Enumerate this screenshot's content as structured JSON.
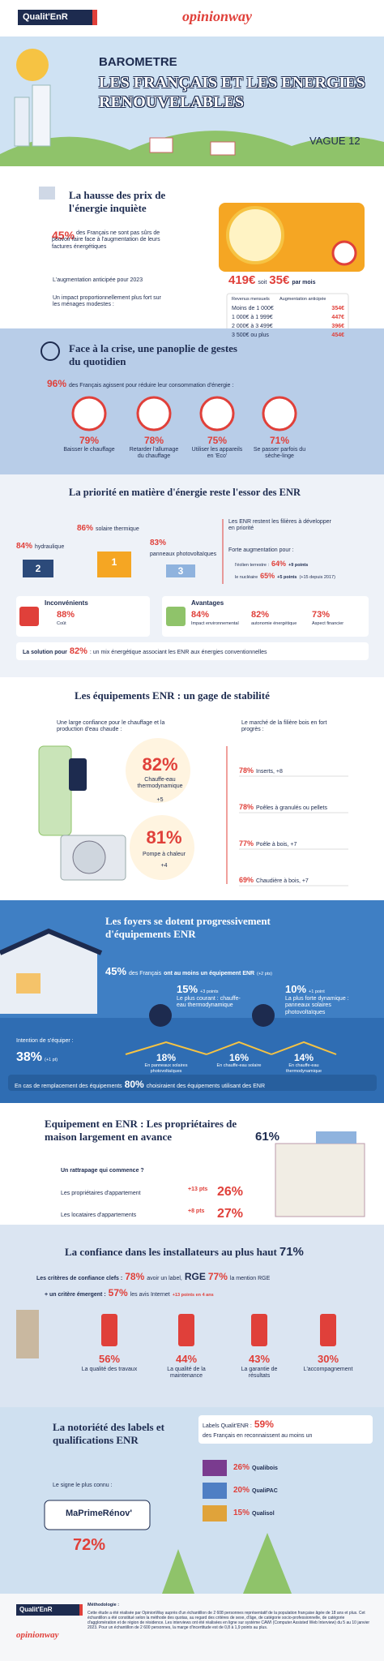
{
  "header": {
    "logo_left": "Qualit'EnR",
    "logo_right": "opinionway"
  },
  "hero": {
    "kicker": "BAROMETRE",
    "title": "LES FRANÇAIS ET LES ENERGIES RENOUVELABLES",
    "wave": "VAGUE 12"
  },
  "prices": {
    "title": "La hausse des prix de l'énergie inquiète",
    "stat": "45%",
    "stat_text": "des Français ne sont pas sûrs de pouvoir faire face à l'augmentation de leurs factures énergétiques",
    "anticipated_label": "L'augmentation anticipée pour 2023",
    "amount": "419€",
    "amount_sep": "soit",
    "monthly": "35€",
    "monthly_suffix": "par mois",
    "impact_text": "Un impact proportionnellement plus fort sur les ménages modestes :",
    "table": {
      "headers": [
        "Revenus mensuels",
        "Augmentation anticipée"
      ],
      "rows": [
        [
          "Moins de 1 000€",
          "354€"
        ],
        [
          "1 000€ à 1 999€",
          "447€"
        ],
        [
          "2 000€ à 3 499€",
          "396€"
        ],
        [
          "3 500€ ou plus",
          "454€"
        ]
      ]
    }
  },
  "gestures": {
    "title": "Face à la crise, une panoplie de gestes du quotidien",
    "stat": "96%",
    "stat_text": "des Français agissent pour réduire leur consommation d'énergie :",
    "items": [
      {
        "value": "79%",
        "label": "Baisser le chauffage"
      },
      {
        "value": "78%",
        "label": "Retarder l'allumage du chauffage"
      },
      {
        "value": "75%",
        "label": "Utiliser les appareils en 'Eco'"
      },
      {
        "value": "71%",
        "label": "Se passer parfois du sèche-linge"
      }
    ]
  },
  "priority": {
    "title": "La priorité en matière d'énergie reste l'essor des ENR",
    "podium": [
      {
        "value": "84%",
        "label": "hydraulique",
        "rank": "2"
      },
      {
        "value": "86%",
        "label": "solaire thermique",
        "rank": "1"
      },
      {
        "value": "83%",
        "label": "panneaux photovoltaïques",
        "rank": "3"
      }
    ],
    "enr_text": "Les ENR restent les filières à développer en priorité",
    "increase_label": "Forte augmentation pour :",
    "increases": [
      {
        "label": "l'éolien terrestre :",
        "value": "64%",
        "change": "+9 points",
        "note": ""
      },
      {
        "label": "le nucléaire",
        "value": "65%",
        "change": "+5 points",
        "note": "(+15 depuis 2017)"
      }
    ],
    "cons": {
      "title": "Inconvénients",
      "value": "88%",
      "label": "Coût"
    },
    "pros": {
      "title": "Avantages",
      "items": [
        {
          "value": "84%",
          "label": "Impact environnemental"
        },
        {
          "value": "82%",
          "label": "autonomie énergétique"
        },
        {
          "value": "73%",
          "label": "Aspect financier"
        }
      ]
    },
    "solution": {
      "prefix": "La solution pour",
      "value": "82%",
      "text": ": un mix énergétique associant les ENR aux énergies conventionnelles"
    }
  },
  "equipment": {
    "title": "Les équipements ENR : un gage de stabilité",
    "left_text": "Une large confiance pour le chauffage et la production d'eau chaude :",
    "heater": {
      "value": "82%",
      "label": "Chauffe-eau thermodynamique",
      "change": "+5"
    },
    "pump": {
      "value": "81%",
      "label": "Pompe à chaleur",
      "change": "+4"
    },
    "wood_text": "Le marché de la filière bois en fort progrès :",
    "wood": [
      {
        "value": "78%",
        "label": "Inserts, +8"
      },
      {
        "value": "78%",
        "label": "Poêles à granulés ou pellets"
      },
      {
        "value": "77%",
        "label": "Poêle à bois, +7"
      },
      {
        "value": "69%",
        "label": "Chaudière à bois, +7"
      }
    ]
  },
  "homes": {
    "title": "Les foyers se dotent progressivement d'équipements ENR",
    "stat": "45%",
    "stat_pre": "des Français",
    "stat_text": "ont au moins un équipement ENR",
    "stat_change": "(+2 pts)",
    "common": {
      "value": "15%",
      "change": "+3 points",
      "label": "Le plus courant : chauffe-eau thermodynamique"
    },
    "dynamic": {
      "value": "10%",
      "change": "+1 point",
      "label": "La plus forte dynamique : panneaux solaires photovoltaïques"
    },
    "intent_label": "Intention de s'équiper :",
    "intent_value": "38%",
    "intent_change": "(+1 pt)",
    "intents": [
      {
        "value": "18%",
        "label": "En panneaux solaires photovoltaïques"
      },
      {
        "value": "16%",
        "label": "En chauffe-eau solaire"
      },
      {
        "value": "14%",
        "label": "En chauffe-eau thermodynamique"
      }
    ],
    "replace_text": "En cas de remplacement des équipements",
    "replace_value": "80%",
    "replace_suffix": "choisiraient des équipements utilisant des ENR"
  },
  "owners": {
    "title": "Equipement en ENR : Les propriétaires de maison largement en avance",
    "value": "61%",
    "question": "Un rattrapage qui commence ?",
    "rows": [
      {
        "label": "Les propriétaires d'appartement",
        "change": "+13 pts",
        "value": "26%"
      },
      {
        "label": "Les locataires d'appartements",
        "change": "+8 pts",
        "value": "27%"
      }
    ]
  },
  "installers": {
    "title": "La confiance dans les installateurs au plus haut",
    "value": "71%",
    "criteria_label": "Les critères de confiance clefs :",
    "label_value": "78%",
    "label_text": "avoir un label,",
    "rge": "RGE",
    "rge_value": "77%",
    "rge_text": "la mention RGE",
    "emerging_label": "+ un critère émergent :",
    "internet_value": "57%",
    "internet_text": "les avis Internet",
    "internet_change": "+13 points en 4 ans",
    "items": [
      {
        "value": "56%",
        "label": "La qualité des travaux"
      },
      {
        "value": "44%",
        "label": "La qualité de la maintenance"
      },
      {
        "value": "43%",
        "label": "La garantie de résultats"
      },
      {
        "value": "30%",
        "label": "L'accompagnement"
      }
    ]
  },
  "labels": {
    "title": "La notoriété des labels et qualifications ENR",
    "qualit_label": "Labels Qualit'ENR :",
    "qualit_value": "59%",
    "qualit_text": "des Français en reconnaissent au moins un",
    "items": [
      {
        "value": "26%",
        "label": "Qualibois"
      },
      {
        "value": "20%",
        "label": "QualiPAC"
      },
      {
        "value": "15%",
        "label": "Qualisol"
      }
    ],
    "known_label": "Le signe le plus connu :",
    "known_name": "MaPrimeRénov'",
    "known_value": "72%"
  },
  "footer": {
    "logo_left": "Qualit'EnR",
    "logo_right": "opinionway",
    "method_title": "Méthodologie :",
    "method_text": "Cette étude a été réalisée par OpinionWay auprès d'un échantillon de 2 608 personnes représentatif de la population française âgée de 18 ans et plus. Cet échantillon a été constitué selon la méthode des quotas, au regard des critères de sexe, d'âge, de catégorie socio-professionnelle, de catégorie d'agglomération et de région de résidence. Les interviews ont été réalisées en ligne sur système CAWI (Computer Assisted Web Interview) du 5 au 10 janvier 2023. Pour un échantillon de 2 600 personnes, la marge d'incertitude est de 0,8 à 1,9 points au plus."
  }
}
